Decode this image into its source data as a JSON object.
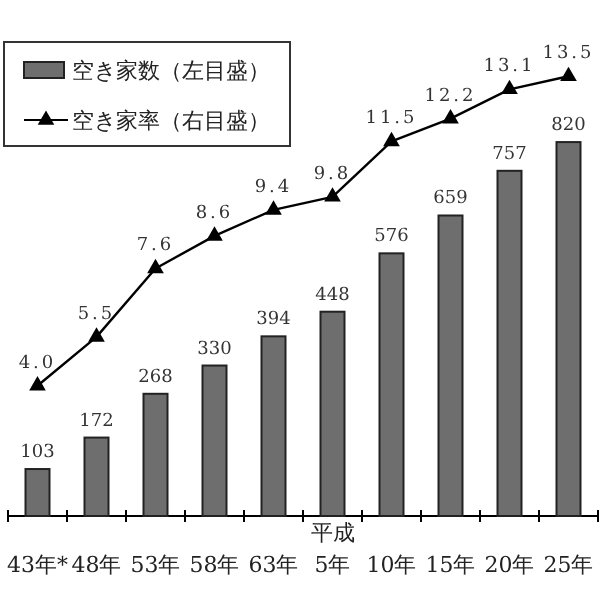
{
  "chart_data": {
    "type": "bar",
    "categories": [
      "43年*",
      "48年",
      "53年",
      "58年",
      "63年",
      "平成\n5年",
      "10年",
      "15年",
      "20年",
      "25年"
    ],
    "series": [
      {
        "name": "空き家数（左目盛）",
        "color": "#6e6e6e",
        "values": [
          103,
          172,
          268,
          330,
          394,
          448,
          576,
          659,
          757,
          820
        ],
        "value_labels": [
          "103",
          "172",
          "268",
          "330",
          "394",
          "448",
          "576",
          "659",
          "757",
          "820"
        ]
      },
      {
        "name": "空き家率（右目盛）",
        "type": "line",
        "axis": "y2",
        "color": "#000000",
        "marker": "triangle",
        "values": [
          4.0,
          5.5,
          7.6,
          8.6,
          9.4,
          9.8,
          11.5,
          12.2,
          13.1,
          13.5
        ],
        "value_labels": [
          "4.0",
          "5.5",
          "7.6",
          "8.6",
          "9.4",
          "9.8",
          "11.5",
          "12.2",
          "13.1",
          "13.5"
        ]
      }
    ],
    "ylim": [
      0,
      1000
    ],
    "y2lim": [
      0,
      14
    ],
    "tick_labels": "x",
    "legend": "top left",
    "grid": false
  }
}
